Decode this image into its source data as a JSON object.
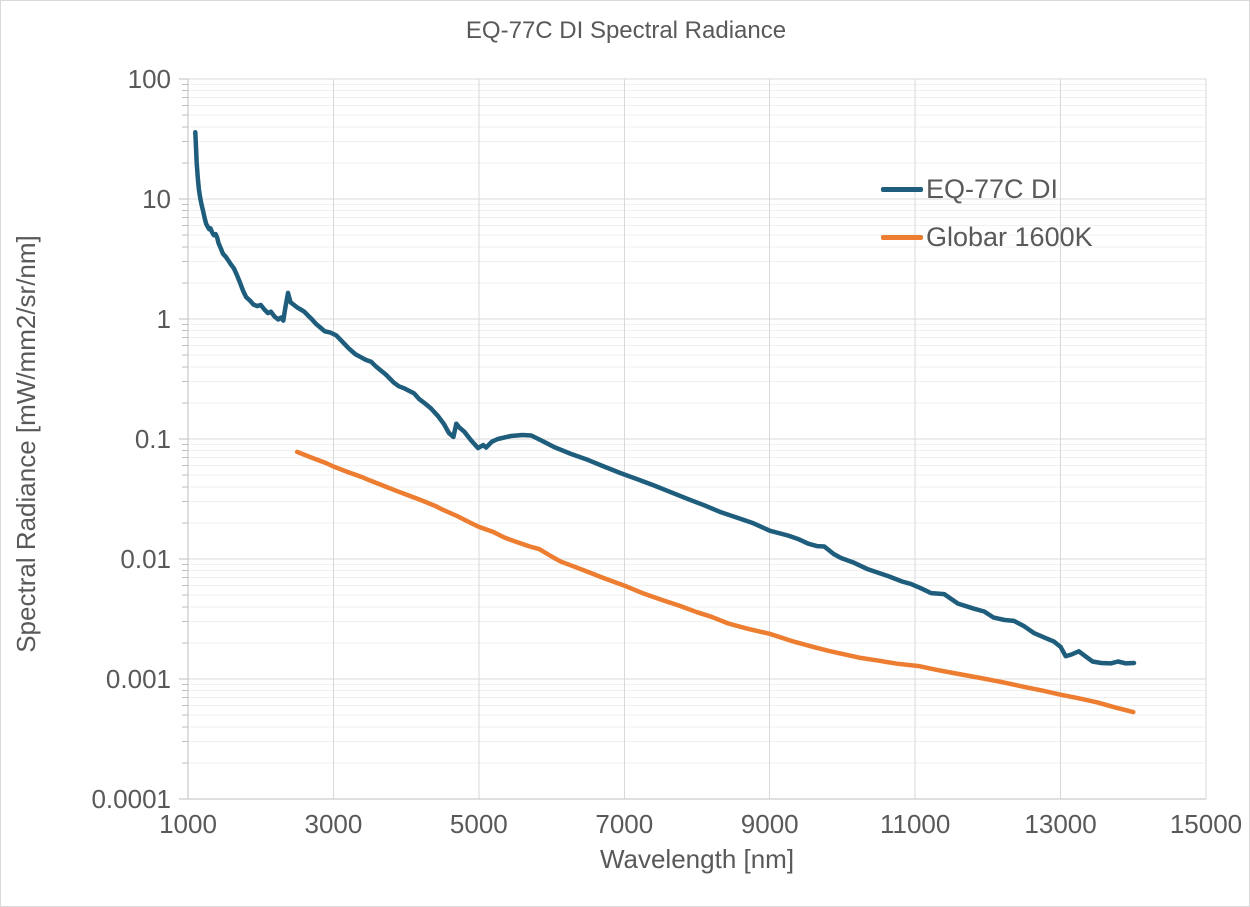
{
  "chart_data": {
    "type": "line",
    "title": "EQ-77C DI Spectral Radiance",
    "xlabel": "Wavelength [nm]",
    "ylabel": "Spectral Radiance [mW/mm2/sr/nm]",
    "x_scale": "linear",
    "y_scale": "log",
    "xlim": [
      1000,
      15000
    ],
    "ylim": [
      0.0001,
      100
    ],
    "grid": true,
    "minor_gridlines": true,
    "legend_position": "upper-right-inside",
    "x_ticks": {
      "values": [
        1000,
        3000,
        5000,
        7000,
        9000,
        11000,
        13000,
        15000
      ],
      "labels": [
        "1000",
        "3000",
        "5000",
        "7000",
        "9000",
        "11000",
        "13000",
        "15000"
      ]
    },
    "y_ticks": {
      "values": [
        100,
        10,
        1,
        0.1,
        0.01,
        0.001,
        0.0001
      ],
      "labels": [
        "100",
        "10",
        "1",
        "0.1",
        "0.01",
        "0.001",
        "0.0001"
      ]
    },
    "series": [
      {
        "name": "EQ-77C DI",
        "color": "#1F5D7D",
        "points": [
          [
            1100,
            36
          ],
          [
            1110,
            27
          ],
          [
            1120,
            20
          ],
          [
            1135,
            15
          ],
          [
            1150,
            12
          ],
          [
            1170,
            10
          ],
          [
            1190,
            8.8
          ],
          [
            1210,
            7.8
          ],
          [
            1230,
            6.9
          ],
          [
            1250,
            6.2
          ],
          [
            1270,
            5.9
          ],
          [
            1290,
            5.6
          ],
          [
            1310,
            5.7
          ],
          [
            1330,
            5.3
          ],
          [
            1355,
            5.0
          ],
          [
            1380,
            5.1
          ],
          [
            1400,
            4.8
          ],
          [
            1420,
            4.3
          ],
          [
            1450,
            3.9
          ],
          [
            1480,
            3.5
          ],
          [
            1520,
            3.3
          ],
          [
            1550,
            3.1
          ],
          [
            1590,
            2.85
          ],
          [
            1630,
            2.65
          ],
          [
            1670,
            2.35
          ],
          [
            1710,
            2.05
          ],
          [
            1760,
            1.7
          ],
          [
            1800,
            1.52
          ],
          [
            1850,
            1.43
          ],
          [
            1900,
            1.32
          ],
          [
            1950,
            1.28
          ],
          [
            2000,
            1.31
          ],
          [
            2050,
            1.2
          ],
          [
            2100,
            1.12
          ],
          [
            2140,
            1.15
          ],
          [
            2190,
            1.05
          ],
          [
            2240,
            0.99
          ],
          [
            2280,
            1.03
          ],
          [
            2310,
            0.97
          ],
          [
            2340,
            1.25
          ],
          [
            2375,
            1.65
          ],
          [
            2410,
            1.38
          ],
          [
            2450,
            1.32
          ],
          [
            2500,
            1.25
          ],
          [
            2550,
            1.2
          ],
          [
            2600,
            1.15
          ],
          [
            2650,
            1.07
          ],
          [
            2700,
            1.0
          ],
          [
            2760,
            0.91
          ],
          [
            2820,
            0.85
          ],
          [
            2880,
            0.79
          ],
          [
            2960,
            0.77
          ],
          [
            3040,
            0.73
          ],
          [
            3110,
            0.66
          ],
          [
            3210,
            0.57
          ],
          [
            3300,
            0.51
          ],
          [
            3380,
            0.48
          ],
          [
            3450,
            0.455
          ],
          [
            3520,
            0.44
          ],
          [
            3590,
            0.4
          ],
          [
            3720,
            0.345
          ],
          [
            3830,
            0.295
          ],
          [
            3900,
            0.275
          ],
          [
            3970,
            0.265
          ],
          [
            4110,
            0.24
          ],
          [
            4180,
            0.215
          ],
          [
            4250,
            0.2
          ],
          [
            4340,
            0.18
          ],
          [
            4440,
            0.155
          ],
          [
            4520,
            0.133
          ],
          [
            4590,
            0.112
          ],
          [
            4650,
            0.104
          ],
          [
            4690,
            0.134
          ],
          [
            4730,
            0.125
          ],
          [
            4800,
            0.115
          ],
          [
            4890,
            0.098
          ],
          [
            4990,
            0.084
          ],
          [
            5060,
            0.089
          ],
          [
            5100,
            0.085
          ],
          [
            5180,
            0.095
          ],
          [
            5260,
            0.1
          ],
          [
            5440,
            0.106
          ],
          [
            5600,
            0.108
          ],
          [
            5720,
            0.107
          ],
          [
            5850,
            0.098
          ],
          [
            6030,
            0.086
          ],
          [
            6270,
            0.075
          ],
          [
            6500,
            0.067
          ],
          [
            6720,
            0.059
          ],
          [
            6950,
            0.052
          ],
          [
            7190,
            0.046
          ],
          [
            7410,
            0.041
          ],
          [
            7640,
            0.036
          ],
          [
            7880,
            0.0315
          ],
          [
            8100,
            0.028
          ],
          [
            8330,
            0.0245
          ],
          [
            8560,
            0.022
          ],
          [
            8780,
            0.0198
          ],
          [
            9000,
            0.0172
          ],
          [
            9250,
            0.0157
          ],
          [
            9400,
            0.0146
          ],
          [
            9530,
            0.0134
          ],
          [
            9650,
            0.0128
          ],
          [
            9750,
            0.0127
          ],
          [
            9880,
            0.011
          ],
          [
            9980,
            0.0102
          ],
          [
            10160,
            0.0093
          ],
          [
            10350,
            0.0082
          ],
          [
            10630,
            0.0072
          ],
          [
            10820,
            0.0065
          ],
          [
            10940,
            0.0062
          ],
          [
            11080,
            0.0057
          ],
          [
            11220,
            0.0052
          ],
          [
            11400,
            0.0051
          ],
          [
            11590,
            0.00425
          ],
          [
            11810,
            0.00385
          ],
          [
            11950,
            0.00365
          ],
          [
            12080,
            0.00325
          ],
          [
            12230,
            0.0031
          ],
          [
            12360,
            0.00305
          ],
          [
            12500,
            0.00275
          ],
          [
            12630,
            0.00242
          ],
          [
            12790,
            0.0022
          ],
          [
            12910,
            0.00205
          ],
          [
            13000,
            0.00185
          ],
          [
            13070,
            0.00155
          ],
          [
            13150,
            0.0016
          ],
          [
            13250,
            0.0017
          ],
          [
            13340,
            0.00155
          ],
          [
            13440,
            0.0014
          ],
          [
            13560,
            0.00136
          ],
          [
            13690,
            0.00135
          ],
          [
            13790,
            0.0014
          ],
          [
            13900,
            0.00135
          ],
          [
            14010,
            0.00136
          ]
        ]
      },
      {
        "name": "Globar 1600K",
        "color": "#ED7D31",
        "points": [
          [
            2500,
            0.078
          ],
          [
            2700,
            0.07
          ],
          [
            2900,
            0.063
          ],
          [
            3000,
            0.059
          ],
          [
            3200,
            0.053
          ],
          [
            3400,
            0.048
          ],
          [
            3500,
            0.0452
          ],
          [
            3700,
            0.0405
          ],
          [
            3900,
            0.0363
          ],
          [
            4000,
            0.0345
          ],
          [
            4200,
            0.031
          ],
          [
            4400,
            0.0277
          ],
          [
            4500,
            0.0258
          ],
          [
            4700,
            0.0228
          ],
          [
            4900,
            0.0198
          ],
          [
            5000,
            0.0185
          ],
          [
            5200,
            0.0168
          ],
          [
            5350,
            0.0151
          ],
          [
            5500,
            0.014
          ],
          [
            5700,
            0.0127
          ],
          [
            5830,
            0.0121
          ],
          [
            6000,
            0.0105
          ],
          [
            6130,
            0.0095
          ],
          [
            6300,
            0.0087
          ],
          [
            6500,
            0.0078
          ],
          [
            6700,
            0.007
          ],
          [
            7000,
            0.006
          ],
          [
            7250,
            0.0052
          ],
          [
            7500,
            0.0046
          ],
          [
            7750,
            0.0041
          ],
          [
            8000,
            0.0036
          ],
          [
            8200,
            0.0033
          ],
          [
            8430,
            0.0029
          ],
          [
            8700,
            0.00262
          ],
          [
            9000,
            0.00238
          ],
          [
            9330,
            0.00205
          ],
          [
            9600,
            0.00185
          ],
          [
            9800,
            0.00172
          ],
          [
            10000,
            0.00162
          ],
          [
            10250,
            0.0015
          ],
          [
            10500,
            0.00142
          ],
          [
            10750,
            0.00134
          ],
          [
            11050,
            0.00128
          ],
          [
            11300,
            0.00119
          ],
          [
            11600,
            0.0011
          ],
          [
            11900,
            0.00102
          ],
          [
            12200,
            0.00094
          ],
          [
            12500,
            0.00086
          ],
          [
            12750,
            0.0008
          ],
          [
            13000,
            0.00074
          ],
          [
            13250,
            0.00069
          ],
          [
            13500,
            0.00064
          ],
          [
            13750,
            0.00058
          ],
          [
            14000,
            0.00053
          ]
        ]
      }
    ],
    "style": {
      "major_grid_color": "#D9D9D9",
      "minor_grid_color": "#F0F0F0",
      "axis_line_color": "#BFBFBF",
      "text_color": "#595959",
      "background": "#FFFFFF",
      "line_width": 4.5
    }
  }
}
